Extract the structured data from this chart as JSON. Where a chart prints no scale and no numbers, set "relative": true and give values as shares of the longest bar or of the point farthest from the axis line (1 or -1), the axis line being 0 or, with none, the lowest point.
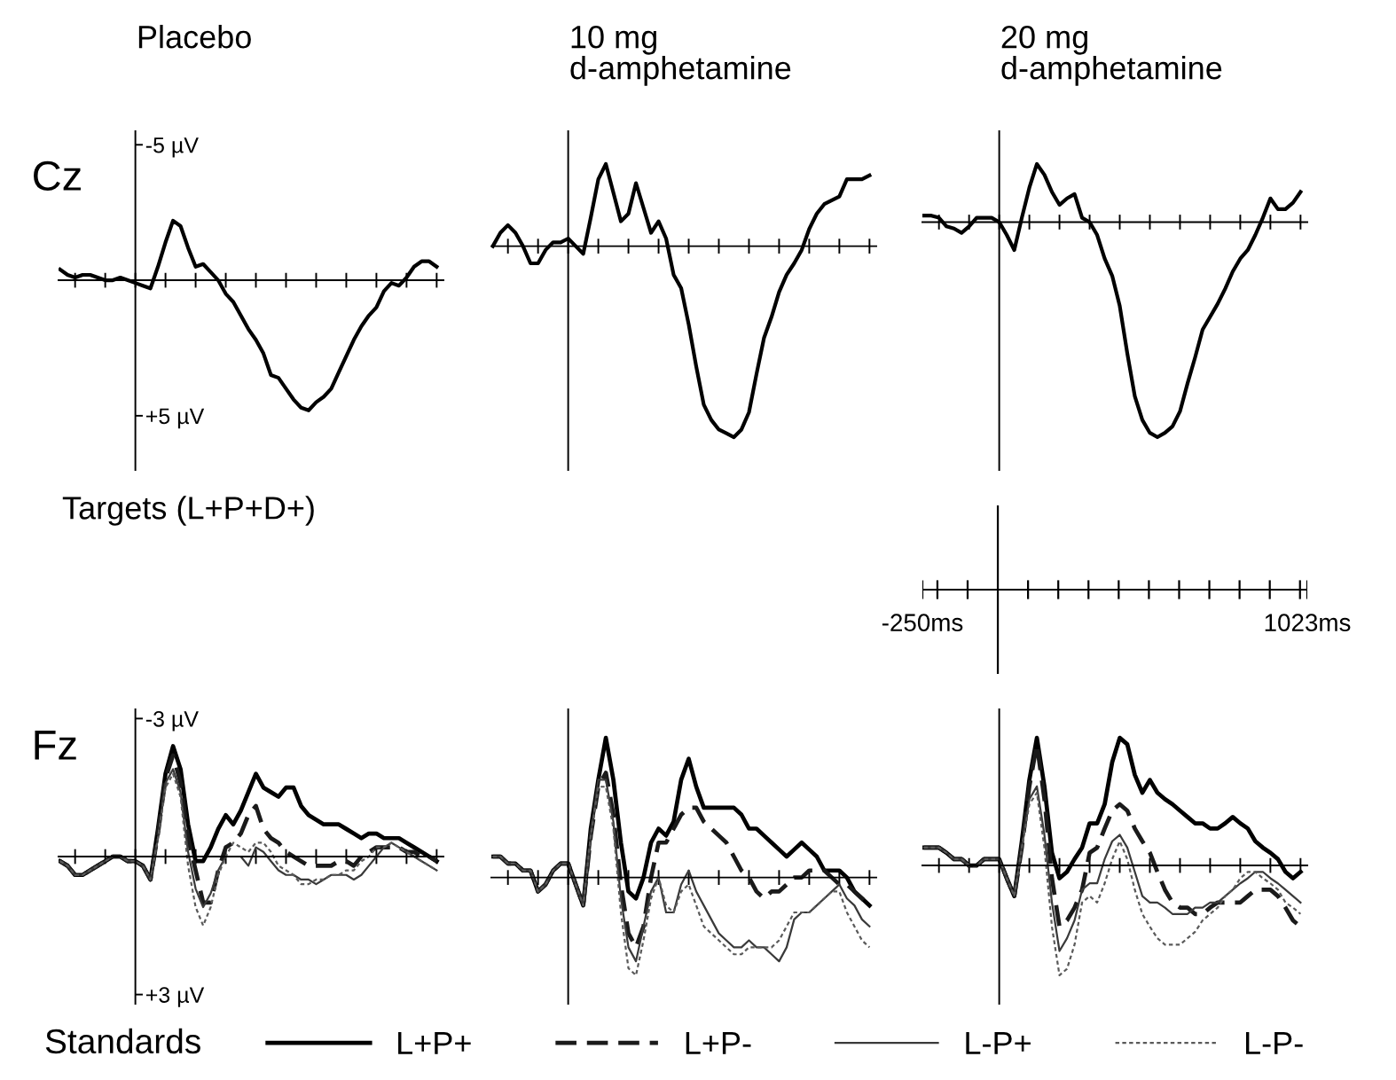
{
  "chart_data": [
    {
      "type": "line",
      "title": "Placebo",
      "ylabel": "Cz",
      "annotations": [
        "Targets (L+P+D+)"
      ],
      "ylim": [
        7,
        -5.5
      ],
      "tick_labels": "y",
      "categories": [
        null,
        null,
        null,
        null,
        null,
        null,
        null,
        null,
        null,
        null,
        null,
        null,
        null,
        null,
        null,
        null,
        null,
        null,
        null,
        null,
        null,
        null,
        null,
        null,
        null,
        null,
        null,
        null,
        null,
        null,
        null,
        null,
        null,
        null,
        null,
        null,
        null,
        null,
        null,
        null,
        null,
        null,
        null,
        null,
        null,
        null,
        null,
        null,
        null,
        null,
        null
      ],
      "yticks": [
        {
          "value": -5,
          "label": "-5 µV"
        },
        {
          "value": 5,
          "label": "+5 µV"
        }
      ],
      "series": [
        {
          "color": "#000000",
          "line_style": "solid",
          "values": [
            -0.4,
            -0.2,
            -0.1,
            -0.2,
            -0.2,
            -0.1,
            0.0,
            0.0,
            -0.1,
            0.0,
            0.1,
            0.2,
            0.3,
            -0.5,
            -1.4,
            -2.2,
            -2.0,
            -1.2,
            -0.5,
            -0.6,
            -0.3,
            0.0,
            0.5,
            0.8,
            1.3,
            1.8,
            2.2,
            2.7,
            3.5,
            3.6,
            4.0,
            4.4,
            4.7,
            4.8,
            4.5,
            4.3,
            4.0,
            3.4,
            2.8,
            2.2,
            1.7,
            1.3,
            1.0,
            0.4,
            0.1,
            0.2,
            -0.1,
            -0.5,
            -0.7,
            -0.7,
            -0.5
          ]
        }
      ]
    },
    {
      "type": "line",
      "title": "10 mg\nd-amphetamine",
      "relative": true,
      "categories": [
        null,
        null,
        null,
        null,
        null,
        null,
        null,
        null,
        null,
        null,
        null,
        null,
        null,
        null,
        null,
        null,
        null,
        null,
        null,
        null,
        null,
        null,
        null,
        null,
        null,
        null,
        null,
        null,
        null,
        null,
        null,
        null,
        null,
        null,
        null,
        null,
        null,
        null,
        null,
        null,
        null,
        null,
        null,
        null,
        null,
        null,
        null,
        null,
        null,
        null,
        null
      ],
      "series": [
        {
          "color": "#000000",
          "line_style": "solid",
          "values": [
            0,
            0.07,
            0.11,
            0.07,
            0,
            -0.09,
            -0.09,
            -0.02,
            0.02,
            0.02,
            0.04,
            0,
            -0.04,
            0.15,
            0.35,
            0.43,
            0.28,
            0.13,
            0.17,
            0.33,
            0.2,
            0.07,
            0.13,
            0.04,
            -0.15,
            -0.22,
            -0.41,
            -0.63,
            -0.83,
            -0.91,
            -0.96,
            -0.98,
            -1,
            -0.96,
            -0.87,
            -0.67,
            -0.48,
            -0.37,
            -0.24,
            -0.15,
            -0.09,
            -0.02,
            0.09,
            0.17,
            0.22,
            0.24,
            0.26,
            0.35,
            0.35,
            0.35,
            0.37
          ]
        }
      ]
    },
    {
      "type": "line",
      "title": "20 mg\nd-amphetamine",
      "relative": true,
      "categories": [
        null,
        null,
        null,
        null,
        null,
        null,
        null,
        null,
        null,
        null,
        null,
        null,
        null,
        null,
        null,
        null,
        null,
        null,
        null,
        null,
        null,
        null,
        null,
        null,
        null,
        null,
        null,
        null,
        null,
        null,
        null,
        null,
        null,
        null,
        null,
        null,
        null,
        null,
        null,
        null,
        null,
        null,
        null,
        null,
        null,
        null,
        null,
        null,
        null,
        null,
        null
      ],
      "series": [
        {
          "color": "#000000",
          "line_style": "solid",
          "values": [
            0.03,
            0.03,
            0.02,
            -0.02,
            -0.03,
            -0.05,
            -0.02,
            0.02,
            0.02,
            0.02,
            0,
            -0.06,
            -0.13,
            0.02,
            0.16,
            0.27,
            0.22,
            0.14,
            0.08,
            0.11,
            0.13,
            0.02,
            0,
            -0.06,
            -0.17,
            -0.25,
            -0.39,
            -0.61,
            -0.81,
            -0.92,
            -0.98,
            -1,
            -0.98,
            -0.95,
            -0.88,
            -0.75,
            -0.63,
            -0.5,
            -0.44,
            -0.38,
            -0.31,
            -0.23,
            -0.17,
            -0.13,
            -0.06,
            0.02,
            0.11,
            0.06,
            0.06,
            0.09,
            0.14
          ]
        }
      ]
    },
    {
      "type": "other",
      "annotations": [
        "-250ms",
        "1023ms"
      ]
    },
    {
      "type": "line",
      "ylabel": "Fz",
      "ylim": [
        3.2,
        -3.2
      ],
      "tick_labels": "y",
      "legend": "bottom",
      "legend_title": "Standards",
      "categories": [
        null,
        null,
        null,
        null,
        null,
        null,
        null,
        null,
        null,
        null,
        null,
        null,
        null,
        null,
        null,
        null,
        null,
        null,
        null,
        null,
        null,
        null,
        null,
        null,
        null,
        null,
        null,
        null,
        null,
        null,
        null,
        null,
        null,
        null,
        null,
        null,
        null,
        null,
        null,
        null,
        null,
        null,
        null,
        null,
        null,
        null,
        null,
        null,
        null,
        null,
        null
      ],
      "yticks": [
        {
          "value": -3,
          "label": "-3 µV"
        },
        {
          "value": 3,
          "label": "+3 µV"
        }
      ],
      "series": [
        {
          "name": "L+P+",
          "color": "#000000",
          "line_style": "solid",
          "values": [
            0.1,
            0.2,
            0.4,
            0.4,
            0.3,
            0.2,
            0.1,
            0.0,
            0.0,
            0.1,
            0.1,
            0.2,
            0.5,
            -0.6,
            -1.8,
            -2.4,
            -1.9,
            -0.7,
            0.1,
            0.1,
            -0.2,
            -0.6,
            -0.9,
            -0.7,
            -1.0,
            -1.4,
            -1.8,
            -1.5,
            -1.4,
            -1.3,
            -1.5,
            -1.5,
            -1.1,
            -0.9,
            -0.8,
            -0.7,
            -0.7,
            -0.7,
            -0.6,
            -0.5,
            -0.4,
            -0.5,
            -0.5,
            -0.4,
            -0.4,
            -0.4,
            -0.3,
            -0.2,
            -0.1,
            0.0,
            0.1
          ]
        },
        {
          "name": "L+P-",
          "color": "#1a1a1a",
          "line_style": "dashed",
          "values": [
            0.1,
            0.2,
            0.4,
            0.4,
            0.3,
            0.2,
            0.1,
            0.0,
            0.0,
            0.1,
            0.1,
            0.2,
            0.5,
            -0.5,
            -1.7,
            -2.2,
            -1.6,
            -0.4,
            0.3,
            1.0,
            1.0,
            0.3,
            -0.2,
            -0.3,
            -0.5,
            -0.9,
            -1.1,
            -0.6,
            -0.4,
            -0.3,
            -0.1,
            0.0,
            0.1,
            0.2,
            0.2,
            0.2,
            0.2,
            0.1,
            0.1,
            0.2,
            0.0,
            -0.1,
            -0.2,
            -0.2,
            -0.2,
            -0.2,
            -0.1,
            -0.1,
            0.0,
            0.0,
            0.1
          ]
        },
        {
          "name": "L-P+",
          "color": "#3a3a3a",
          "line_style": "solid",
          "values": [
            0.1,
            0.2,
            0.4,
            0.4,
            0.3,
            0.2,
            0.1,
            0.0,
            0.0,
            0.1,
            0.1,
            0.2,
            0.5,
            -0.4,
            -1.6,
            -1.9,
            -1.4,
            -0.1,
            0.7,
            1.1,
            0.8,
            0.3,
            0.0,
            0.0,
            0.0,
            0.2,
            -0.2,
            -0.1,
            0.1,
            0.3,
            0.4,
            0.4,
            0.5,
            0.5,
            0.6,
            0.5,
            0.4,
            0.4,
            0.4,
            0.5,
            0.4,
            0.2,
            0.0,
            -0.2,
            -0.3,
            -0.2,
            -0.1,
            0.0,
            0.1,
            0.2,
            0.3
          ]
        },
        {
          "name": "L-P-",
          "color": "#5a5a5a",
          "line_style": "dotted",
          "values": [
            0.1,
            0.2,
            0.4,
            0.4,
            0.3,
            0.2,
            0.1,
            0.0,
            0.0,
            0.1,
            0.1,
            0.2,
            0.5,
            -0.4,
            -1.5,
            -1.8,
            -1.3,
            0.2,
            1.1,
            1.5,
            1.1,
            0.4,
            0.0,
            -0.3,
            -0.2,
            -0.1,
            -0.3,
            -0.3,
            -0.1,
            0.2,
            0.3,
            0.4,
            0.6,
            0.6,
            0.5,
            0.5,
            0.4,
            0.4,
            0.3,
            0.3,
            0.1,
            0.0,
            -0.2,
            -0.2,
            -0.3,
            -0.2,
            -0.1,
            0.0,
            0.1,
            0.2,
            0.3
          ]
        }
      ]
    },
    {
      "type": "line",
      "relative": true,
      "categories": [
        null,
        null,
        null,
        null,
        null,
        null,
        null,
        null,
        null,
        null,
        null,
        null,
        null,
        null,
        null,
        null,
        null,
        null,
        null,
        null,
        null,
        null,
        null,
        null,
        null,
        null,
        null,
        null,
        null,
        null,
        null,
        null,
        null,
        null,
        null,
        null,
        null,
        null,
        null,
        null,
        null,
        null,
        null,
        null,
        null,
        null,
        null,
        null,
        null,
        null,
        null
      ],
      "series": [
        {
          "color": "#000000",
          "line_style": "solid",
          "values": [
            0.15,
            0.15,
            0.1,
            0.1,
            0.05,
            0.05,
            -0.1,
            -0.05,
            0.05,
            0.1,
            0.1,
            -0.05,
            -0.2,
            0.35,
            0.7,
            1,
            0.7,
            0.25,
            -0.1,
            -0.15,
            0,
            0.25,
            0.35,
            0.3,
            0.4,
            0.7,
            0.85,
            0.65,
            0.5,
            0.5,
            0.5,
            0.5,
            0.5,
            0.45,
            0.35,
            0.35,
            0.3,
            0.25,
            0.2,
            0.15,
            0.2,
            0.25,
            0.2,
            0.15,
            0.05,
            0.05,
            0.05,
            0,
            -0.1,
            -0.15,
            -0.2
          ]
        },
        {
          "color": "#1a1a1a",
          "line_style": "dashed",
          "values": [
            0.15,
            0.15,
            0.1,
            0.1,
            0.05,
            0.05,
            -0.1,
            -0.05,
            0.05,
            0.1,
            0.1,
            -0.05,
            -0.2,
            0.3,
            0.65,
            0.75,
            0.45,
            -0.05,
            -0.4,
            -0.5,
            -0.35,
            0,
            0.25,
            0.25,
            0.35,
            0.45,
            0.5,
            0.5,
            0.4,
            0.35,
            0.3,
            0.25,
            0.15,
            0.05,
            0,
            -0.1,
            -0.15,
            -0.1,
            -0.1,
            -0.05,
            0,
            0,
            0.05,
            0.05,
            0.05,
            0,
            -0.05,
            -0.05,
            -0.1,
            -0.15,
            -0.2
          ]
        },
        {
          "color": "#3a3a3a",
          "line_style": "solid",
          "values": [
            0.15,
            0.15,
            0.1,
            0.1,
            0.05,
            0.05,
            -0.1,
            -0.05,
            0.05,
            0.1,
            0.1,
            -0.05,
            -0.2,
            0.3,
            0.7,
            0.7,
            0.4,
            -0.15,
            -0.5,
            -0.6,
            -0.35,
            -0.1,
            0,
            -0.25,
            -0.25,
            -0.05,
            0.05,
            -0.1,
            -0.2,
            -0.3,
            -0.4,
            -0.45,
            -0.5,
            -0.5,
            -0.45,
            -0.5,
            -0.5,
            -0.55,
            -0.6,
            -0.5,
            -0.3,
            -0.25,
            -0.25,
            -0.2,
            -0.15,
            -0.1,
            -0.05,
            -0.15,
            -0.2,
            -0.3,
            -0.35
          ]
        },
        {
          "color": "#5a5a5a",
          "line_style": "dotted",
          "values": [
            0.15,
            0.15,
            0.1,
            0.1,
            0.05,
            0.05,
            -0.1,
            -0.05,
            0.05,
            0.1,
            0.1,
            -0.05,
            -0.2,
            0.3,
            0.65,
            0.65,
            0.35,
            -0.25,
            -0.65,
            -0.7,
            -0.45,
            -0.15,
            0,
            -0.2,
            -0.25,
            -0.1,
            -0.05,
            -0.2,
            -0.35,
            -0.4,
            -0.45,
            -0.5,
            -0.55,
            -0.55,
            -0.5,
            -0.5,
            -0.5,
            -0.5,
            -0.45,
            -0.35,
            -0.25,
            -0.25,
            -0.25,
            -0.2,
            -0.15,
            -0.1,
            -0.1,
            -0.25,
            -0.35,
            -0.45,
            -0.5
          ]
        }
      ]
    },
    {
      "type": "line",
      "relative": true,
      "categories": [
        null,
        null,
        null,
        null,
        null,
        null,
        null,
        null,
        null,
        null,
        null,
        null,
        null,
        null,
        null,
        null,
        null,
        null,
        null,
        null,
        null,
        null,
        null,
        null,
        null,
        null,
        null,
        null,
        null,
        null,
        null,
        null,
        null,
        null,
        null,
        null,
        null,
        null,
        null,
        null,
        null,
        null,
        null,
        null,
        null,
        null,
        null,
        null,
        null,
        null,
        null
      ],
      "series": [
        {
          "color": "#000000",
          "line_style": "solid",
          "values": [
            0.14,
            0.14,
            0.14,
            0.1,
            0.05,
            0.05,
            0,
            0,
            0.05,
            0.05,
            0.05,
            -0.1,
            -0.24,
            0.19,
            0.67,
            1,
            0.62,
            0.1,
            -0.1,
            -0.05,
            0.05,
            0.14,
            0.33,
            0.33,
            0.48,
            0.81,
            1,
            0.95,
            0.71,
            0.57,
            0.67,
            0.57,
            0.52,
            0.48,
            0.43,
            0.38,
            0.33,
            0.33,
            0.29,
            0.29,
            0.33,
            0.38,
            0.33,
            0.29,
            0.19,
            0.14,
            0.1,
            0.05,
            -0.05,
            -0.1,
            -0.05
          ]
        },
        {
          "color": "#1a1a1a",
          "line_style": "dashed",
          "values": [
            0.14,
            0.14,
            0.14,
            0.1,
            0.05,
            0.05,
            0,
            0,
            0.05,
            0.05,
            0.05,
            -0.1,
            -0.24,
            0.14,
            0.62,
            0.95,
            0.52,
            -0.1,
            -0.48,
            -0.43,
            -0.33,
            -0.19,
            0.1,
            0.14,
            0.29,
            0.43,
            0.48,
            0.43,
            0.29,
            0.19,
            0.1,
            -0.05,
            -0.19,
            -0.29,
            -0.33,
            -0.33,
            -0.38,
            -0.38,
            -0.33,
            -0.29,
            -0.29,
            -0.29,
            -0.29,
            -0.24,
            -0.19,
            -0.19,
            -0.19,
            -0.24,
            -0.33,
            -0.43,
            -0.48
          ]
        },
        {
          "color": "#3a3a3a",
          "line_style": "solid",
          "values": [
            0.14,
            0.14,
            0.14,
            0.1,
            0.05,
            0.05,
            0,
            0,
            0.05,
            0.05,
            0.05,
            -0.1,
            -0.24,
            0.14,
            0.52,
            0.62,
            0.24,
            -0.29,
            -0.67,
            -0.57,
            -0.43,
            -0.19,
            -0.14,
            -0.14,
            0.05,
            0.19,
            0.24,
            0.14,
            -0.05,
            -0.24,
            -0.29,
            -0.29,
            -0.33,
            -0.38,
            -0.38,
            -0.38,
            -0.33,
            -0.33,
            -0.29,
            -0.29,
            -0.24,
            -0.19,
            -0.14,
            -0.1,
            -0.05,
            -0.05,
            -0.1,
            -0.14,
            -0.19,
            -0.24,
            -0.29
          ]
        },
        {
          "color": "#5a5a5a",
          "line_style": "dotted",
          "values": [
            0.14,
            0.14,
            0.14,
            0.1,
            0.05,
            0.05,
            0,
            0,
            0.05,
            0.05,
            0.05,
            -0.1,
            -0.24,
            0.14,
            0.48,
            0.57,
            0.14,
            -0.48,
            -0.86,
            -0.81,
            -0.62,
            -0.29,
            -0.24,
            -0.29,
            -0.14,
            0.05,
            0.19,
            0.05,
            -0.19,
            -0.38,
            -0.48,
            -0.57,
            -0.62,
            -0.62,
            -0.62,
            -0.57,
            -0.52,
            -0.43,
            -0.38,
            -0.33,
            -0.24,
            -0.19,
            -0.1,
            -0.05,
            -0.05,
            -0.1,
            -0.14,
            -0.19,
            -0.29,
            -0.33,
            -0.38
          ]
        }
      ]
    }
  ]
}
